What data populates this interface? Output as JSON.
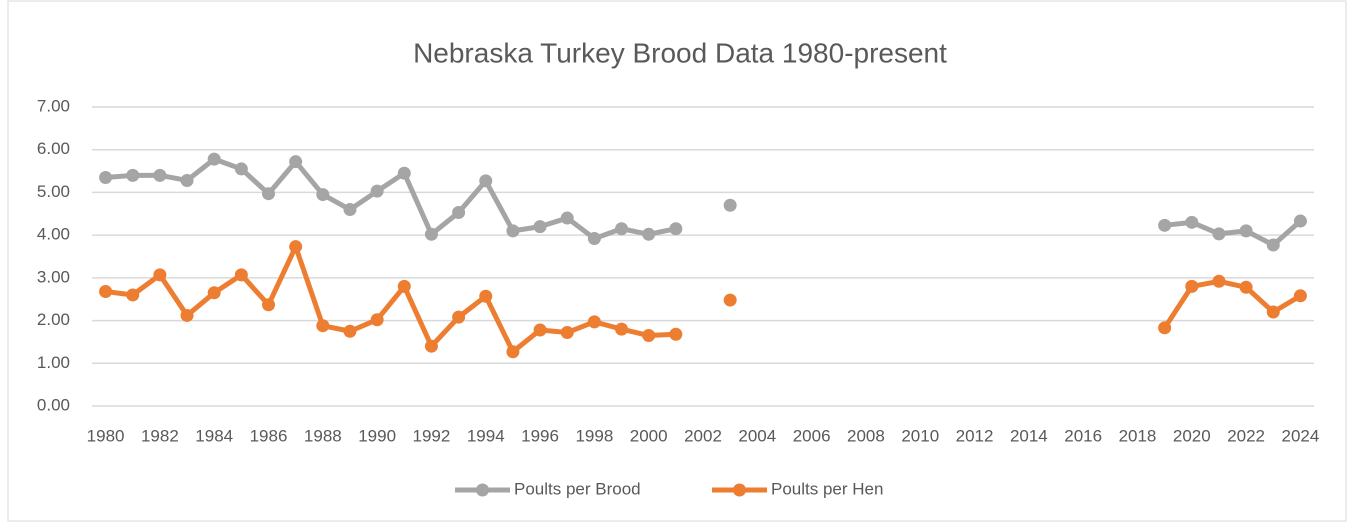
{
  "chart_data": {
    "type": "line",
    "title": "Nebraska Turkey Brood Data 1980-present",
    "categories": [
      1980,
      null,
      1982,
      null,
      1984,
      null,
      1986,
      null,
      1988,
      null,
      1990,
      null,
      1992,
      null,
      1994,
      null,
      1996,
      null,
      1998,
      null,
      2000,
      null,
      2002,
      null,
      2004,
      null,
      2006,
      null,
      2008,
      null,
      2010,
      null,
      2012,
      null,
      2014,
      null,
      2016,
      null,
      2018,
      null,
      2020,
      null,
      2022,
      null,
      2024
    ],
    "series": [
      {
        "name": "Poults per Brood",
        "color": "#a5a5a5",
        "values": [
          5.35,
          5.4,
          5.4,
          5.28,
          5.78,
          5.55,
          4.97,
          5.72,
          4.95,
          4.6,
          5.03,
          5.45,
          4.02,
          4.53,
          5.27,
          4.1,
          4.2,
          4.4,
          3.92,
          4.15,
          4.02,
          4.15,
          null,
          4.7,
          null,
          null,
          null,
          null,
          null,
          null,
          null,
          null,
          null,
          null,
          null,
          null,
          null,
          null,
          null,
          4.23,
          4.3,
          4.03,
          4.1,
          3.77,
          4.33
        ]
      },
      {
        "name": "Poults per Hen",
        "color": "#ed7d31",
        "values": [
          2.68,
          2.6,
          3.07,
          2.12,
          2.65,
          3.07,
          2.37,
          3.73,
          1.88,
          1.75,
          2.02,
          2.8,
          1.4,
          2.08,
          2.57,
          1.27,
          1.78,
          1.72,
          1.97,
          1.8,
          1.65,
          1.68,
          null,
          2.48,
          null,
          null,
          null,
          null,
          null,
          null,
          null,
          null,
          null,
          null,
          null,
          null,
          null,
          null,
          null,
          1.83,
          2.8,
          2.92,
          2.78,
          2.2,
          2.58
        ]
      }
    ],
    "ylim": [
      0,
      7
    ],
    "yticks": [
      {
        "value": 0,
        "label": "0.00"
      },
      {
        "value": 1,
        "label": "1.00"
      },
      {
        "value": 2,
        "label": "2.00"
      },
      {
        "value": 3,
        "label": "3.00"
      },
      {
        "value": 4,
        "label": "4.00"
      },
      {
        "value": 5,
        "label": "5.00"
      },
      {
        "value": 6,
        "label": "6.00"
      },
      {
        "value": 7,
        "label": "7.00"
      }
    ],
    "grid": true,
    "legend": "bottom"
  }
}
